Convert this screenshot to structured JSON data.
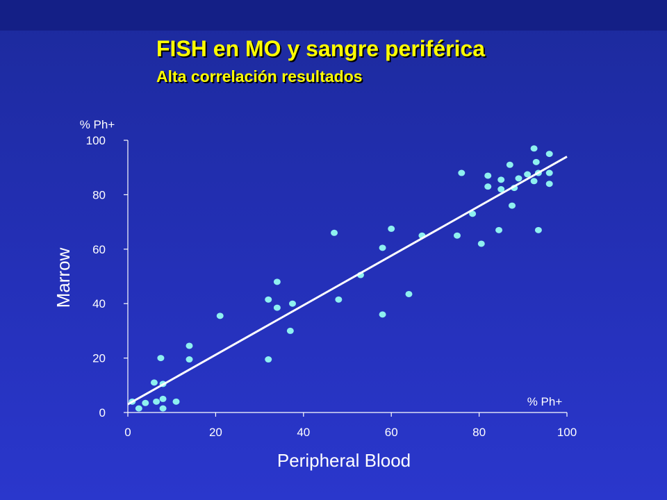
{
  "slide": {
    "title": "FISH en MO y sangre periférica",
    "subtitle": "Alta correlación resultados"
  },
  "colors": {
    "background": "#2430b8",
    "title": "#ffff00",
    "points": "#8ef0f0",
    "line": "#ffffff",
    "axes": "#ffffff"
  },
  "chart_data": {
    "type": "scatter",
    "xlabel": "Peripheral Blood",
    "ylabel": "Marrow",
    "x_unit_label": "% Ph+",
    "y_unit_label": "% Ph+",
    "xlim": [
      0,
      100
    ],
    "ylim": [
      0,
      100
    ],
    "xticks": [
      0,
      20,
      40,
      60,
      80,
      100
    ],
    "yticks": [
      0,
      20,
      40,
      60,
      80,
      100
    ],
    "grid": false,
    "series": [
      {
        "marker": "circle",
        "x": [
          1,
          2.5,
          4,
          6,
          6.5,
          7.5,
          8,
          8,
          8,
          11,
          14,
          14,
          21,
          32,
          32,
          34,
          34,
          37,
          37.5,
          47,
          48,
          53,
          58,
          58,
          60,
          64,
          67,
          75,
          76,
          78.5,
          80.5,
          82,
          82,
          84.5,
          85,
          85,
          87,
          87.5,
          88,
          89,
          91,
          92.5,
          92.5,
          93,
          93.5,
          93.5,
          96,
          96,
          96
        ],
        "y": [
          4,
          1.5,
          3.5,
          11,
          4,
          20,
          5,
          10.5,
          1.5,
          4,
          24.5,
          19.5,
          35.5,
          41.5,
          19.5,
          48,
          38.5,
          30,
          40,
          66,
          41.5,
          50.5,
          60.5,
          36,
          67.5,
          43.5,
          65,
          65,
          88,
          73,
          62,
          83,
          87,
          67,
          85.5,
          82,
          91,
          76,
          82.5,
          86,
          87.5,
          85,
          97,
          92,
          88,
          67,
          95,
          88,
          84
        ]
      }
    ],
    "fit_line": {
      "x": [
        0,
        100
      ],
      "y": [
        3,
        94
      ]
    }
  }
}
